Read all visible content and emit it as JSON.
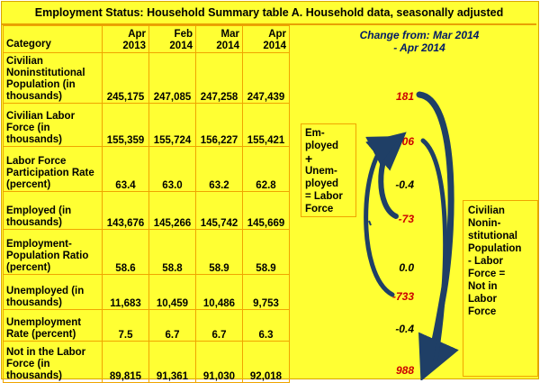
{
  "title": "Employment Status: Household Summary table A. Household data, seasonally adjusted",
  "table": {
    "category_header": "Category",
    "columns": [
      {
        "line1": "Apr",
        "line2": "2013"
      },
      {
        "line1": "Feb",
        "line2": "2014"
      },
      {
        "line1": "Mar",
        "line2": "2014"
      },
      {
        "line1": "Apr",
        "line2": "2014"
      }
    ],
    "rows": [
      {
        "label": "Civilian Noninstitutional Population (in thousands)",
        "values": [
          "245,175",
          "247,085",
          "247,258",
          "247,439"
        ],
        "change": "181"
      },
      {
        "label": "Civilian Labor Force (in thousands)",
        "values": [
          "155,359",
          "155,724",
          "156,227",
          "155,421"
        ],
        "change": "-806"
      },
      {
        "label": "Labor Force Participation Rate (percent)",
        "values": [
          "63.4",
          "63.0",
          "63.2",
          "62.8"
        ],
        "change": "-0.4"
      },
      {
        "label": "Employed (in thousands)",
        "values": [
          "143,676",
          "145,266",
          "145,742",
          "145,669"
        ],
        "change": "-73"
      },
      {
        "label": "Employment-Population Ratio (percent)",
        "values": [
          "58.6",
          "58.8",
          "58.9",
          "58.9"
        ],
        "change": "0.0"
      },
      {
        "label": "Unemployed (in thousands)",
        "values": [
          "11,683",
          "10,459",
          "10,486",
          "9,753"
        ],
        "change": "-733"
      },
      {
        "label": "Unemployment Rate (percent)",
        "values": [
          "7.5",
          "6.7",
          "6.7",
          "6.3"
        ],
        "change": "-0.4"
      },
      {
        "label": "Not in the Labor Force (in thousands)",
        "values": [
          "89,815",
          "91,361",
          "91,030",
          "92,018"
        ],
        "change": "988"
      }
    ]
  },
  "change_header": {
    "line1": "Change from: Mar 2014",
    "line2": "- Apr 2014"
  },
  "note_box_1": {
    "l1": "Em-",
    "l2": "ployed",
    "l3": "+",
    "l4": "Unem-",
    "l5": "ployed",
    "l6": "= Labor",
    "l7": "Force"
  },
  "note_box_2": {
    "l1": "Civilian",
    "l2": "Nonin-",
    "l3": "stitutional",
    "l4": "Population",
    "l5": "- Labor",
    "l6": "Force =",
    "l7": "Not in",
    "l8": "Labor",
    "l9": "Force"
  },
  "colors": {
    "background": "#ffff33",
    "border": "#f0a500",
    "highlight": "#cc0000",
    "arrow": "#1f3f66"
  }
}
